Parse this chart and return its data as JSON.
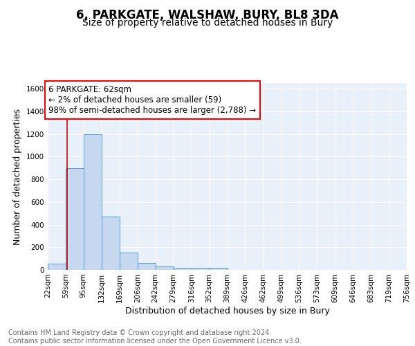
{
  "title": "6, PARKGATE, WALSHAW, BURY, BL8 3DA",
  "subtitle": "Size of property relative to detached houses in Bury",
  "xlabel": "Distribution of detached houses by size in Bury",
  "ylabel": "Number of detached properties",
  "bar_color": "#c5d8f0",
  "bar_edge_color": "#5a9fd4",
  "background_color": "#e8f0fa",
  "annotation_text": "6 PARKGATE: 62sqm\n← 2% of detached houses are smaller (59)\n98% of semi-detached houses are larger (2,788) →",
  "vline_x": 62,
  "vline_color": "#cc0000",
  "bins": [
    22,
    59,
    95,
    132,
    169,
    206,
    242,
    279,
    316,
    352,
    389,
    426,
    462,
    499,
    536,
    573,
    609,
    646,
    683,
    719,
    756
  ],
  "bar_heights": [
    55,
    900,
    1195,
    470,
    150,
    60,
    30,
    20,
    18,
    20,
    0,
    0,
    0,
    0,
    0,
    0,
    0,
    0,
    0,
    0
  ],
  "ylim": [
    0,
    1650
  ],
  "yticks": [
    0,
    200,
    400,
    600,
    800,
    1000,
    1200,
    1400,
    1600
  ],
  "footer_text": "Contains HM Land Registry data © Crown copyright and database right 2024.\nContains public sector information licensed under the Open Government Licence v3.0.",
  "title_fontsize": 12,
  "subtitle_fontsize": 10,
  "label_fontsize": 9,
  "tick_fontsize": 7.5,
  "annotation_fontsize": 8.5,
  "footer_fontsize": 7
}
